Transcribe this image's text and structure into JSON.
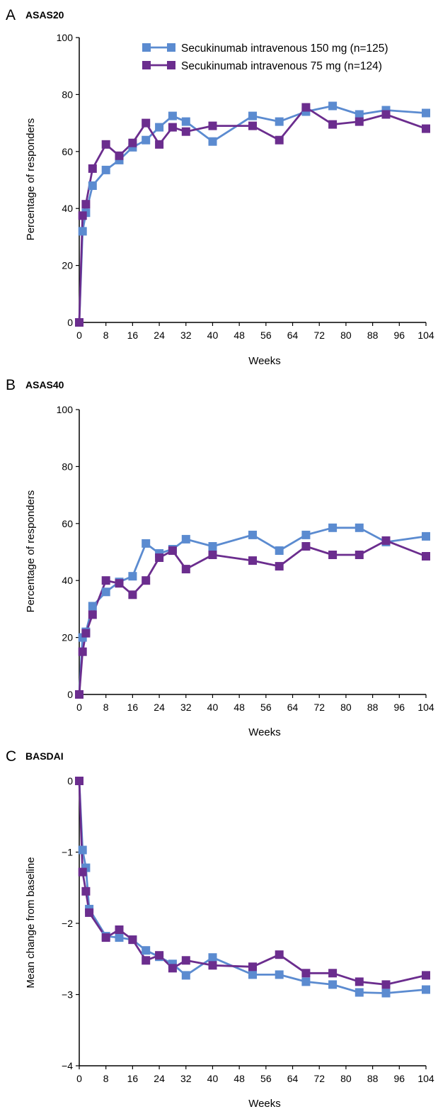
{
  "colors": {
    "s150": "#5b8bd0",
    "s75": "#6b2d8e"
  },
  "legend": [
    {
      "series": "s150",
      "label": "Secukinumab intravenous 150 mg (n=125)"
    },
    {
      "series": "s75",
      "label": "Secukinumab intravenous 75 mg (n=124)"
    }
  ],
  "chart_data": [
    {
      "letter": "A",
      "title": "ASAS20",
      "type": "line",
      "xlabel": "Weeks",
      "ylabel": "Percentage of responders",
      "xlim": [
        0,
        104
      ],
      "ylim": [
        0,
        100
      ],
      "xticks": [
        0,
        8,
        16,
        24,
        32,
        40,
        48,
        56,
        64,
        72,
        80,
        88,
        96,
        104
      ],
      "yticks": [
        0,
        20,
        40,
        60,
        80,
        100
      ],
      "legend_position": "top-right",
      "series": [
        {
          "key": "s150",
          "x": [
            0,
            1,
            2,
            4,
            8,
            12,
            16,
            20,
            24,
            28,
            32,
            40,
            52,
            60,
            68,
            76,
            84,
            92,
            104
          ],
          "y": [
            0,
            32,
            38.5,
            48,
            53.5,
            57,
            61.5,
            64,
            68.5,
            72.5,
            70.5,
            63.5,
            72.5,
            70.5,
            74,
            76,
            73,
            74.5,
            73.5
          ]
        },
        {
          "key": "s75",
          "x": [
            0,
            1,
            2,
            4,
            8,
            12,
            16,
            20,
            24,
            28,
            32,
            40,
            52,
            60,
            68,
            76,
            84,
            92,
            104
          ],
          "y": [
            0,
            37.5,
            41.5,
            54,
            62.5,
            58.5,
            63,
            70,
            62.5,
            68.5,
            67,
            69,
            69,
            64,
            75.5,
            69.5,
            70.5,
            73,
            68
          ]
        }
      ]
    },
    {
      "letter": "B",
      "title": "ASAS40",
      "type": "line",
      "xlabel": "Weeks",
      "ylabel": "Percentage of responders",
      "xlim": [
        0,
        104
      ],
      "ylim": [
        0,
        100
      ],
      "xticks": [
        0,
        8,
        16,
        24,
        32,
        40,
        48,
        56,
        64,
        72,
        80,
        88,
        96,
        104
      ],
      "yticks": [
        0,
        20,
        40,
        60,
        80,
        100
      ],
      "series": [
        {
          "key": "s150",
          "x": [
            0,
            1,
            2,
            4,
            8,
            12,
            16,
            20,
            24,
            28,
            32,
            40,
            52,
            60,
            68,
            76,
            84,
            92,
            104
          ],
          "y": [
            0,
            20,
            22,
            31,
            36,
            39.5,
            41.5,
            53,
            49.5,
            51,
            54.5,
            52,
            56,
            50.5,
            56,
            58.5,
            58.5,
            53.5,
            55.5
          ]
        },
        {
          "key": "s75",
          "x": [
            0,
            1,
            2,
            4,
            8,
            12,
            16,
            20,
            24,
            28,
            32,
            40,
            52,
            60,
            68,
            76,
            84,
            92,
            104
          ],
          "y": [
            0,
            15,
            21.5,
            28,
            40,
            39,
            35,
            40,
            48,
            50.5,
            44,
            49,
            47,
            45,
            52,
            49,
            49,
            54,
            48.5
          ]
        }
      ]
    },
    {
      "letter": "C",
      "title": "BASDAI",
      "type": "line",
      "xlabel": "Weeks",
      "ylabel": "Mean change from baseline",
      "xlim": [
        0,
        104
      ],
      "ylim": [
        -4,
        0
      ],
      "xticks": [
        0,
        8,
        16,
        24,
        32,
        40,
        48,
        56,
        64,
        72,
        80,
        88,
        96,
        104
      ],
      "yticks": [
        -4,
        -3,
        -2,
        -1,
        0
      ],
      "series": [
        {
          "key": "s150",
          "x": [
            0,
            1,
            2,
            3,
            8,
            12,
            16,
            20,
            24,
            28,
            32,
            40,
            52,
            60,
            68,
            76,
            84,
            92,
            104
          ],
          "y": [
            0,
            -0.97,
            -1.22,
            -1.8,
            -2.18,
            -2.2,
            -2.23,
            -2.38,
            -2.47,
            -2.57,
            -2.73,
            -2.48,
            -2.72,
            -2.72,
            -2.82,
            -2.86,
            -2.97,
            -2.98,
            -2.93
          ]
        },
        {
          "key": "s75",
          "x": [
            0,
            1,
            2,
            3,
            8,
            12,
            16,
            20,
            24,
            28,
            32,
            40,
            52,
            60,
            68,
            76,
            84,
            92,
            104
          ],
          "y": [
            0,
            -1.28,
            -1.55,
            -1.85,
            -2.2,
            -2.09,
            -2.23,
            -2.52,
            -2.45,
            -2.63,
            -2.52,
            -2.59,
            -2.61,
            -2.44,
            -2.7,
            -2.7,
            -2.82,
            -2.86,
            -2.73
          ]
        }
      ]
    }
  ]
}
